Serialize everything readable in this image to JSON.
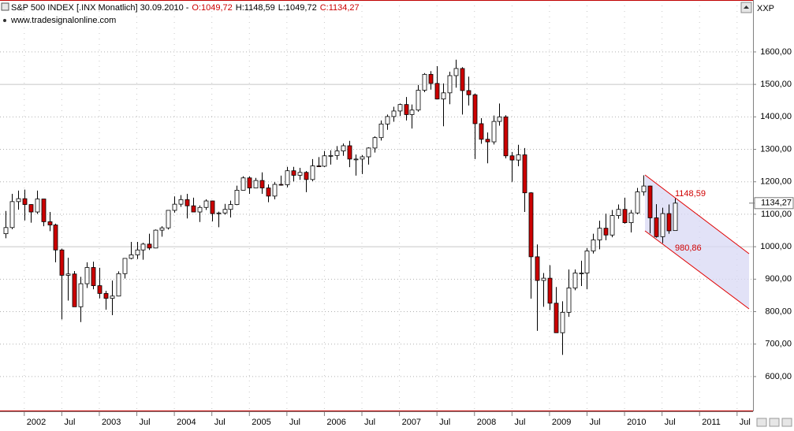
{
  "chart_data": {
    "type": "candlestick",
    "title": "S&P 500 INDEX [.INX  Monatlich] 30.09.2010 -",
    "ohlc_labels": [
      "O:1049,72",
      "H:1148,59",
      "L:1049,72",
      "C:1134,27"
    ],
    "ohlc_label_colors": [
      "#cc0000",
      "#000000",
      "#000000",
      "#cc0000"
    ],
    "source": "www.tradesignalonline.com",
    "symbol": "XXP",
    "up_color": "#ffffff",
    "down_color": "#cc0000",
    "x": [
      "2001-10",
      "2001-11",
      "2001-12",
      "2002-01",
      "2002-02",
      "2002-03",
      "2002-04",
      "2002-05",
      "2002-06",
      "2002-07",
      "2002-08",
      "2002-09",
      "2002-10",
      "2002-11",
      "2002-12",
      "2003-01",
      "2003-02",
      "2003-03",
      "2003-04",
      "2003-05",
      "2003-06",
      "2003-07",
      "2003-08",
      "2003-09",
      "2003-10",
      "2003-11",
      "2003-12",
      "2004-01",
      "2004-02",
      "2004-03",
      "2004-04",
      "2004-05",
      "2004-06",
      "2004-07",
      "2004-08",
      "2004-09",
      "2004-10",
      "2004-11",
      "2004-12",
      "2005-01",
      "2005-02",
      "2005-03",
      "2005-04",
      "2005-05",
      "2005-06",
      "2005-07",
      "2005-08",
      "2005-09",
      "2005-10",
      "2005-11",
      "2005-12",
      "2006-01",
      "2006-02",
      "2006-03",
      "2006-04",
      "2006-05",
      "2006-06",
      "2006-07",
      "2006-08",
      "2006-09",
      "2006-10",
      "2006-11",
      "2006-12",
      "2007-01",
      "2007-02",
      "2007-03",
      "2007-04",
      "2007-05",
      "2007-06",
      "2007-07",
      "2007-08",
      "2007-09",
      "2007-10",
      "2007-11",
      "2007-12",
      "2008-01",
      "2008-02",
      "2008-03",
      "2008-04",
      "2008-05",
      "2008-06",
      "2008-07",
      "2008-08",
      "2008-09",
      "2008-10",
      "2008-11",
      "2008-12",
      "2009-01",
      "2009-02",
      "2009-03",
      "2009-04",
      "2009-05",
      "2009-06",
      "2009-07",
      "2009-08",
      "2009-09",
      "2009-10",
      "2009-11",
      "2009-12",
      "2010-01",
      "2010-02",
      "2010-03",
      "2010-04",
      "2010-05",
      "2010-06",
      "2010-07",
      "2010-08",
      "2010-09"
    ],
    "open": [
      1040,
      1059,
      1139,
      1148,
      1130,
      1107,
      1147,
      1077,
      1067,
      990,
      912,
      916,
      815,
      886,
      936,
      880,
      856,
      841,
      848,
      917,
      964,
      975,
      990,
      1008,
      996,
      1051,
      1058,
      1112,
      1131,
      1145,
      1126,
      1107,
      1121,
      1141,
      1102,
      1104,
      1115,
      1130,
      1174,
      1212,
      1181,
      1204,
      1181,
      1156,
      1192,
      1191,
      1234,
      1220,
      1229,
      1207,
      1249,
      1248,
      1280,
      1281,
      1295,
      1311,
      1270,
      1270,
      1277,
      1304,
      1336,
      1378,
      1401,
      1418,
      1438,
      1407,
      1421,
      1482,
      1531,
      1503,
      1455,
      1474,
      1527,
      1549,
      1481,
      1468,
      1379,
      1331,
      1323,
      1386,
      1400,
      1280,
      1267,
      1283,
      1166,
      969,
      896,
      903,
      826,
      735,
      798,
      873,
      919,
      919,
      987,
      1021,
      1057,
      1036,
      1096,
      1115,
      1074,
      1104,
      1169,
      1187,
      1089,
      1031,
      1102,
      1049.72
    ],
    "high": [
      1110,
      1163,
      1173,
      1176,
      1131,
      1173,
      1147,
      1107,
      1071,
      994,
      966,
      925,
      907,
      952,
      954,
      935,
      864,
      896,
      924,
      965,
      1015,
      1015,
      1012,
      1040,
      1053,
      1063,
      1112,
      1155,
      1159,
      1163,
      1151,
      1127,
      1146,
      1142,
      1108,
      1132,
      1142,
      1188,
      1217,
      1217,
      1212,
      1229,
      1192,
      1199,
      1219,
      1246,
      1246,
      1243,
      1233,
      1270,
      1276,
      1295,
      1297,
      1310,
      1318,
      1326,
      1284,
      1282,
      1306,
      1340,
      1389,
      1407,
      1431,
      1441,
      1461,
      1438,
      1498,
      1535,
      1541,
      1556,
      1503,
      1539,
      1576,
      1553,
      1524,
      1472,
      1396,
      1352,
      1404,
      1441,
      1405,
      1292,
      1314,
      1304,
      1168,
      1007,
      919,
      943,
      876,
      832,
      930,
      930,
      957,
      996,
      1040,
      1080,
      1102,
      1113,
      1130,
      1151,
      1113,
      1181,
      1220,
      1188,
      1131,
      1120,
      1130,
      1148.59
    ],
    "low": [
      1026,
      1054,
      1114,
      1081,
      1074,
      1101,
      1063,
      1048,
      952,
      776,
      834,
      815,
      768,
      873,
      869,
      841,
      806,
      789,
      847,
      902,
      961,
      962,
      960,
      990,
      995,
      1031,
      1053,
      1105,
      1123,
      1087,
      1107,
      1076,
      1113,
      1078,
      1060,
      1099,
      1090,
      1128,
      1174,
      1163,
      1180,
      1163,
      1137,
      1146,
      1188,
      1183,
      1201,
      1206,
      1168,
      1202,
      1246,
      1245,
      1253,
      1268,
      1280,
      1245,
      1219,
      1224,
      1253,
      1290,
      1327,
      1360,
      1385,
      1403,
      1389,
      1364,
      1416,
      1476,
      1484,
      1455,
      1371,
      1439,
      1490,
      1407,
      1435,
      1270,
      1317,
      1257,
      1315,
      1373,
      1272,
      1200,
      1248,
      1107,
      840,
      741,
      815,
      805,
      735,
      667,
      784,
      866,
      879,
      869,
      979,
      992,
      1020,
      1029,
      1086,
      1071,
      1044,
      1100,
      1157,
      1041,
      1028,
      1011,
      1040,
      1049.72
    ],
    "close": [
      1059,
      1139,
      1148,
      1130,
      1107,
      1147,
      1077,
      1067,
      990,
      912,
      916,
      815,
      886,
      936,
      880,
      856,
      841,
      848,
      917,
      964,
      975,
      990,
      1008,
      996,
      1051,
      1058,
      1112,
      1131,
      1145,
      1126,
      1107,
      1121,
      1141,
      1102,
      1104,
      1115,
      1130,
      1174,
      1212,
      1181,
      1204,
      1181,
      1156,
      1192,
      1191,
      1234,
      1220,
      1229,
      1207,
      1249,
      1248,
      1280,
      1281,
      1295,
      1311,
      1270,
      1270,
      1277,
      1304,
      1336,
      1378,
      1401,
      1418,
      1438,
      1407,
      1421,
      1482,
      1531,
      1503,
      1455,
      1474,
      1527,
      1549,
      1481,
      1468,
      1379,
      1331,
      1323,
      1386,
      1400,
      1280,
      1267,
      1283,
      1166,
      969,
      896,
      903,
      826,
      735,
      798,
      873,
      919,
      919,
      987,
      1021,
      1057,
      1036,
      1096,
      1115,
      1074,
      1104,
      1169,
      1187,
      1089,
      1031,
      1102,
      1049,
      1134.27
    ],
    "ylim": [
      493,
      1760
    ],
    "yticks": [
      {
        "value": 600,
        "label": "600,00"
      },
      {
        "value": 700,
        "label": "700,00"
      },
      {
        "value": 800,
        "label": "800,00"
      },
      {
        "value": 900,
        "label": "900,00"
      },
      {
        "value": 1000,
        "label": "1000,00"
      },
      {
        "value": 1100,
        "label": "1100,00"
      },
      {
        "value": 1200,
        "label": "1200,00"
      },
      {
        "value": 1300,
        "label": "1300,00"
      },
      {
        "value": 1400,
        "label": "1400,00"
      },
      {
        "value": 1500,
        "label": "1500,00"
      },
      {
        "value": 1600,
        "label": "1600,00"
      }
    ],
    "xticks": [
      {
        "value": "2002-01",
        "label": "2002"
      },
      {
        "value": "2002-07",
        "label": "Jul"
      },
      {
        "value": "2003-01",
        "label": "2003"
      },
      {
        "value": "2003-07",
        "label": "Jul"
      },
      {
        "value": "2004-01",
        "label": "2004"
      },
      {
        "value": "2004-07",
        "label": "Jul"
      },
      {
        "value": "2005-01",
        "label": "2005"
      },
      {
        "value": "2005-07",
        "label": "Jul"
      },
      {
        "value": "2006-01",
        "label": "2006"
      },
      {
        "value": "2006-07",
        "label": "Jul"
      },
      {
        "value": "2007-01",
        "label": "2007"
      },
      {
        "value": "2007-07",
        "label": "Jul"
      },
      {
        "value": "2008-01",
        "label": "2008"
      },
      {
        "value": "2008-07",
        "label": "Jul"
      },
      {
        "value": "2009-01",
        "label": "2009"
      },
      {
        "value": "2009-07",
        "label": "Jul"
      },
      {
        "value": "2010-01",
        "label": "2010"
      },
      {
        "value": "2010-07",
        "label": "Jul"
      },
      {
        "value": "2011-01",
        "label": "2011"
      },
      {
        "value": "2011-07",
        "label": "Jul"
      }
    ],
    "last_price": {
      "value": 1134.27,
      "label": "1134,27"
    },
    "annotations": [
      {
        "value": 1148.59,
        "label": "1148,59"
      },
      {
        "value": 980.86,
        "label": "980,86"
      }
    ],
    "grid": true
  }
}
